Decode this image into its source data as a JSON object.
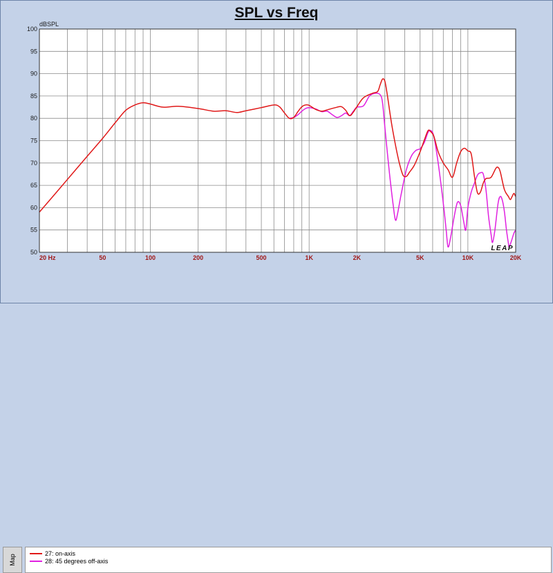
{
  "chart_data": {
    "type": "line",
    "title": "SPL vs Freq",
    "ylabel": "dBSPL",
    "xlabel": "",
    "xscale": "log",
    "xlim": [
      20,
      20000
    ],
    "ylim": [
      50,
      100
    ],
    "grid": true,
    "legend_position": "bottom-left",
    "x_ticks": [
      {
        "v": 20,
        "label": "20  Hz"
      },
      {
        "v": 50,
        "label": "50"
      },
      {
        "v": 100,
        "label": "100"
      },
      {
        "v": 200,
        "label": "200"
      },
      {
        "v": 500,
        "label": "500"
      },
      {
        "v": 1000,
        "label": "1K"
      },
      {
        "v": 2000,
        "label": "2K"
      },
      {
        "v": 5000,
        "label": "5K"
      },
      {
        "v": 10000,
        "label": "10K"
      },
      {
        "v": 20000,
        "label": "20K"
      }
    ],
    "y_ticks": [
      100,
      95,
      90,
      85,
      80,
      75,
      70,
      65,
      60,
      55,
      50
    ],
    "series": [
      {
        "name": "27: on-axis",
        "color": "#e01818",
        "points": [
          [
            20,
            59
          ],
          [
            25,
            63
          ],
          [
            30,
            66.3
          ],
          [
            40,
            71.5
          ],
          [
            50,
            75.5
          ],
          [
            60,
            79
          ],
          [
            70,
            81.8
          ],
          [
            80,
            83
          ],
          [
            90,
            83.5
          ],
          [
            100,
            83.2
          ],
          [
            120,
            82.5
          ],
          [
            150,
            82.7
          ],
          [
            200,
            82.2
          ],
          [
            250,
            81.6
          ],
          [
            300,
            81.7
          ],
          [
            350,
            81.3
          ],
          [
            400,
            81.7
          ],
          [
            500,
            82.4
          ],
          [
            600,
            83
          ],
          [
            650,
            82.6
          ],
          [
            700,
            81.2
          ],
          [
            750,
            80
          ],
          [
            800,
            80.2
          ],
          [
            850,
            81.5
          ],
          [
            900,
            82.6
          ],
          [
            950,
            83
          ],
          [
            1000,
            82.9
          ],
          [
            1100,
            82
          ],
          [
            1200,
            81.6
          ],
          [
            1300,
            81.9
          ],
          [
            1500,
            82.5
          ],
          [
            1600,
            82.6
          ],
          [
            1700,
            81.8
          ],
          [
            1800,
            80.6
          ],
          [
            1900,
            81.4
          ],
          [
            2000,
            82.6
          ],
          [
            2200,
            84.6
          ],
          [
            2500,
            85.6
          ],
          [
            2700,
            86
          ],
          [
            2800,
            87.5
          ],
          [
            2900,
            88.8
          ],
          [
            3000,
            88.3
          ],
          [
            3100,
            85.5
          ],
          [
            3300,
            79
          ],
          [
            3500,
            74
          ],
          [
            3700,
            70
          ],
          [
            3900,
            67.3
          ],
          [
            4100,
            67
          ],
          [
            4300,
            68
          ],
          [
            4600,
            69.5
          ],
          [
            5000,
            72.5
          ],
          [
            5300,
            75
          ],
          [
            5600,
            77.2
          ],
          [
            5800,
            77.1
          ],
          [
            6100,
            76
          ],
          [
            6500,
            72.5
          ],
          [
            7000,
            70
          ],
          [
            7500,
            68.5
          ],
          [
            8000,
            66.8
          ],
          [
            8500,
            70
          ],
          [
            9000,
            72.5
          ],
          [
            9500,
            73.3
          ],
          [
            10000,
            72.7
          ],
          [
            10500,
            72
          ],
          [
            11000,
            67
          ],
          [
            11500,
            63.3
          ],
          [
            12000,
            63.5
          ],
          [
            12500,
            65.5
          ],
          [
            13000,
            66.5
          ],
          [
            14000,
            66.8
          ],
          [
            15000,
            68.8
          ],
          [
            15500,
            69
          ],
          [
            16000,
            68
          ],
          [
            17000,
            64
          ],
          [
            18000,
            62.5
          ],
          [
            18500,
            61.8
          ],
          [
            19000,
            62.5
          ],
          [
            19500,
            63.2
          ],
          [
            20000,
            62.5
          ],
          [
            21000,
            61.8
          ],
          [
            22000,
            61.8
          ]
        ]
      },
      {
        "name": "28: 45 degrees off-axis",
        "color": "#e020e0",
        "points": [
          [
            750,
            80
          ],
          [
            800,
            80.2
          ],
          [
            850,
            80.8
          ],
          [
            900,
            81.6
          ],
          [
            950,
            82.2
          ],
          [
            1000,
            82.4
          ],
          [
            1100,
            82.1
          ],
          [
            1200,
            81.5
          ],
          [
            1300,
            81.6
          ],
          [
            1400,
            80.8
          ],
          [
            1500,
            80.2
          ],
          [
            1600,
            80.6
          ],
          [
            1700,
            81.2
          ],
          [
            1800,
            80.6
          ],
          [
            1900,
            81.6
          ],
          [
            2000,
            82.5
          ],
          [
            2200,
            82.8
          ],
          [
            2400,
            85
          ],
          [
            2600,
            85.6
          ],
          [
            2800,
            85.3
          ],
          [
            2900,
            83.5
          ],
          [
            3000,
            78
          ],
          [
            3200,
            68
          ],
          [
            3400,
            60
          ],
          [
            3500,
            57.2
          ],
          [
            3600,
            58.5
          ],
          [
            3800,
            63
          ],
          [
            4100,
            68.5
          ],
          [
            4400,
            71.5
          ],
          [
            4700,
            72.8
          ],
          [
            5000,
            73.2
          ],
          [
            5300,
            74.5
          ],
          [
            5600,
            76.8
          ],
          [
            5800,
            77.3
          ],
          [
            6100,
            76
          ],
          [
            6500,
            70
          ],
          [
            7000,
            61
          ],
          [
            7300,
            55
          ],
          [
            7500,
            51.2
          ],
          [
            7800,
            53.5
          ],
          [
            8200,
            58
          ],
          [
            8600,
            61.2
          ],
          [
            9000,
            60.5
          ],
          [
            9400,
            57
          ],
          [
            9700,
            55
          ],
          [
            10000,
            60
          ],
          [
            10500,
            63.5
          ],
          [
            11000,
            65.5
          ],
          [
            11500,
            67.3
          ],
          [
            12000,
            67.8
          ],
          [
            12500,
            67.5
          ],
          [
            13000,
            64
          ],
          [
            13500,
            58
          ],
          [
            14000,
            54
          ],
          [
            14300,
            52.2
          ],
          [
            14800,
            55
          ],
          [
            15500,
            61
          ],
          [
            16000,
            62.5
          ],
          [
            16500,
            61.6
          ],
          [
            17000,
            59
          ],
          [
            17500,
            55
          ],
          [
            18000,
            52
          ],
          [
            18200,
            51.2
          ],
          [
            18800,
            52.5
          ],
          [
            19500,
            54.3
          ],
          [
            20000,
            55
          ],
          [
            20500,
            56
          ],
          [
            21000,
            57.5
          ],
          [
            22000,
            59
          ]
        ]
      }
    ]
  },
  "legend": {
    "tab_label": "Map",
    "items": [
      {
        "label": "27: on-axis",
        "color": "#e01818"
      },
      {
        "label": "28: 45 degrees off-axis",
        "color": "#e020e0"
      }
    ]
  },
  "brand": {
    "text": "LEAP"
  },
  "colors": {
    "background": "#c4d2e8",
    "plot": "#ffffff",
    "grid": "#8a8a8a",
    "axis_text": "#1a1a1a",
    "x_tick_text": "#a01818"
  }
}
